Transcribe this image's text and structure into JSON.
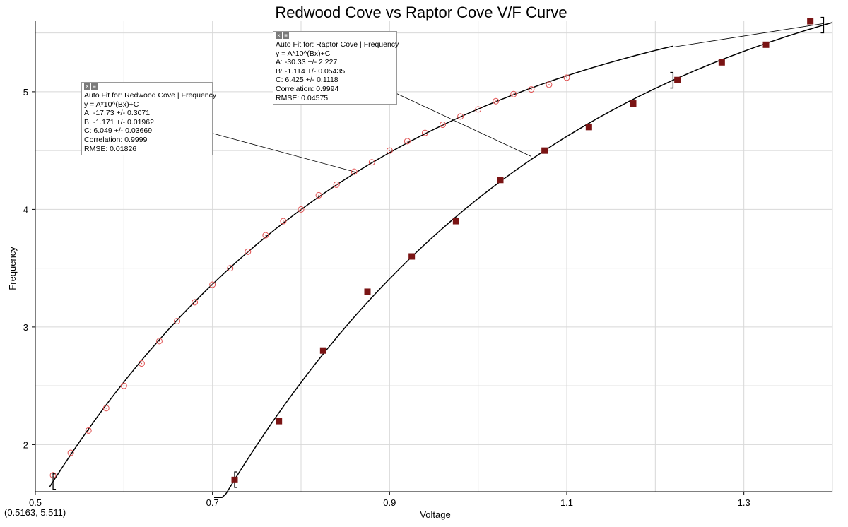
{
  "chart_data": {
    "type": "scatter",
    "title": "Redwood Cove vs Raptor Cove V/F Curve",
    "xlabel": "Voltage",
    "ylabel": "Frequency",
    "xlim": [
      0.5,
      1.4
    ],
    "ylim": [
      1.6,
      5.6
    ],
    "x_ticks": [
      "0.5",
      "0.7",
      "0.9",
      "1.1",
      "1.3"
    ],
    "y_ticks": [
      "2",
      "3",
      "4",
      "5"
    ],
    "grid": true,
    "series": [
      {
        "name": "Redwood Cove",
        "marker": "open-circle",
        "color": "#e05050",
        "x": [
          0.52,
          0.54,
          0.56,
          0.58,
          0.6,
          0.62,
          0.64,
          0.66,
          0.68,
          0.7,
          0.72,
          0.74,
          0.76,
          0.78,
          0.8,
          0.82,
          0.84,
          0.86,
          0.88,
          0.9,
          0.92,
          0.94,
          0.96,
          0.98,
          1.0,
          1.02,
          1.04,
          1.06,
          1.08,
          1.1
        ],
        "y": [
          1.74,
          1.93,
          2.12,
          2.31,
          2.5,
          2.69,
          2.88,
          3.05,
          3.21,
          3.36,
          3.5,
          3.64,
          3.78,
          3.9,
          4.0,
          4.12,
          4.21,
          4.32,
          4.4,
          4.5,
          4.58,
          4.65,
          4.72,
          4.79,
          4.85,
          4.92,
          4.98,
          5.02,
          5.06,
          5.12
        ]
      },
      {
        "name": "Raptor Cove",
        "marker": "filled-square",
        "color": "#7a1414",
        "x": [
          0.725,
          0.775,
          0.825,
          0.875,
          0.925,
          0.975,
          1.025,
          1.075,
          1.125,
          1.175,
          1.225,
          1.275,
          1.325,
          1.375
        ],
        "y": [
          1.7,
          2.2,
          2.8,
          3.3,
          3.6,
          3.9,
          4.25,
          4.5,
          4.7,
          4.9,
          5.1,
          5.25,
          5.4,
          5.6
        ]
      }
    ],
    "fits": [
      {
        "series": "Redwood Cove",
        "equation": "y = A*10^(Bx)+C",
        "A": -17.73,
        "B": -1.171,
        "C": 6.049,
        "x_range": [
          0.5163,
          1.22
        ],
        "bracket_x": [
          0.52
        ]
      },
      {
        "series": "Raptor Cove",
        "equation": "y = A*10^(Bx)+C",
        "A": -30.33,
        "B": -1.114,
        "C": 6.425,
        "x_range": [
          0.5163,
          1.4
        ],
        "bracket_x": [
          0.725,
          1.22,
          1.39
        ]
      }
    ],
    "extension_line": {
      "x": [
        1.22,
        1.39
      ],
      "y": [
        5.38,
        5.58
      ]
    }
  },
  "fit_boxes": [
    {
      "lines": [
        "Auto Fit for: Redwood Cove | Frequency",
        "y = A*10^(Bx)+C",
        "A: -17.73 +/- 0.3071",
        "B: -1.171 +/- 0.01962",
        "C: 6.049 +/- 0.03669",
        "Correlation: 0.9999",
        "RMSE: 0.01826"
      ]
    },
    {
      "lines": [
        "Auto Fit for: Raptor Cove | Frequency",
        "y = A*10^(Bx)+C",
        "A: -30.33 +/- 2.227",
        "B: -1.114 +/- 0.05435",
        "C: 6.425 +/- 0.1118",
        "Correlation: 0.9994",
        "RMSE: 0.04575"
      ]
    }
  ],
  "coord_readout": "(0.5163, 5.511)",
  "icons": {
    "fit_box_header": [
      "close-icon",
      "options-icon"
    ]
  }
}
